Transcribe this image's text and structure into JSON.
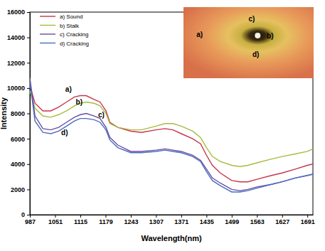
{
  "chart_data": {
    "type": "line",
    "x_label": "Wavelength(nm)",
    "y_label": "Intensity",
    "x": [
      987,
      1000,
      1020,
      1040,
      1060,
      1080,
      1100,
      1115,
      1130,
      1150,
      1165,
      1180,
      1190,
      1210,
      1243,
      1270,
      1307,
      1330,
      1350,
      1371,
      1400,
      1420,
      1435,
      1450,
      1470,
      1499,
      1520,
      1540,
      1563,
      1600,
      1627,
      1660,
      1691,
      1705
    ],
    "series": [
      {
        "name": "a) Sound",
        "color": "#c8344c",
        "values": [
          10200,
          8800,
          8200,
          8200,
          8500,
          8900,
          9300,
          9400,
          9400,
          9100,
          8900,
          8200,
          7300,
          6900,
          6600,
          6500,
          6700,
          6800,
          6700,
          6400,
          6000,
          5600,
          4700,
          3900,
          3300,
          2700,
          2600,
          2600,
          2800,
          3100,
          3300,
          3600,
          3900,
          4000
        ]
      },
      {
        "name": "b) Stalk",
        "color": "#a9bb3f",
        "values": [
          9800,
          8400,
          7800,
          7700,
          7900,
          8200,
          8600,
          8800,
          8900,
          8800,
          8600,
          8000,
          7200,
          6900,
          6700,
          6700,
          7000,
          7200,
          7200,
          7000,
          6600,
          6100,
          5300,
          4600,
          4200,
          3900,
          3800,
          3900,
          4100,
          4400,
          4600,
          4800,
          5000,
          5200
        ]
      },
      {
        "name": "c) Cracking",
        "color": "#6b4e9e",
        "values": [
          10800,
          7800,
          6800,
          6700,
          6900,
          7300,
          7700,
          7900,
          8000,
          7800,
          7600,
          6900,
          6100,
          5500,
          5000,
          5000,
          5100,
          5200,
          5100,
          5000,
          4700,
          4300,
          3600,
          2900,
          2500,
          2000,
          1900,
          2000,
          2200,
          2400,
          2600,
          2900,
          3100,
          3200
        ]
      },
      {
        "name": "d) Cracking",
        "color": "#4a6cc2",
        "values": [
          10500,
          7400,
          6500,
          6400,
          6600,
          7000,
          7400,
          7600,
          7600,
          7500,
          7300,
          6700,
          5900,
          5300,
          4900,
          4900,
          5000,
          5100,
          5000,
          4900,
          4600,
          4200,
          3400,
          2700,
          2300,
          1800,
          1800,
          1900,
          2100,
          2400,
          2600,
          2900,
          3100,
          3200
        ]
      }
    ],
    "annotations": [
      {
        "text": "a)",
        "x": 1085,
        "y": 9700
      },
      {
        "text": "b)",
        "x": 1112,
        "y": 8700
      },
      {
        "text": "c)",
        "x": 1168,
        "y": 7700
      },
      {
        "text": "d)",
        "x": 1075,
        "y": 6300
      }
    ],
    "xlim": [
      987,
      1705
    ],
    "xticks": [
      987,
      1051,
      1115,
      1179,
      1243,
      1307,
      1371,
      1435,
      1499,
      1563,
      1627,
      1691
    ],
    "ylim": [
      0,
      16000
    ],
    "yticks": [
      0,
      2000,
      4000,
      6000,
      8000,
      10000,
      12000,
      14000,
      16000
    ],
    "grid": false,
    "legend": "upper left"
  },
  "inset": {
    "labels": [
      "a)",
      "c)",
      "b)",
      "d)"
    ]
  }
}
